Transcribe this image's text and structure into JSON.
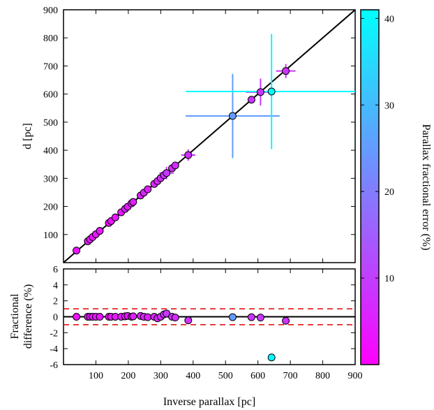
{
  "chart_data": [
    {
      "type": "scatter",
      "panel": "top",
      "ylabel": "d [pc]",
      "xlim": [
        0,
        900
      ],
      "ylim": [
        0,
        900
      ],
      "xticks": [
        100,
        200,
        300,
        400,
        500,
        600,
        700,
        800,
        900
      ],
      "yticks": [
        100,
        200,
        300,
        400,
        500,
        600,
        700,
        800,
        900
      ],
      "reference_line": "y = x",
      "points": [
        {
          "x": 40,
          "y": 43,
          "err": 3
        },
        {
          "x": 75,
          "y": 76,
          "err": 4
        },
        {
          "x": 82,
          "y": 83,
          "err": 4
        },
        {
          "x": 90,
          "y": 91,
          "err": 3
        },
        {
          "x": 100,
          "y": 101,
          "err": 4
        },
        {
          "x": 112,
          "y": 113,
          "err": 4
        },
        {
          "x": 140,
          "y": 141,
          "err": 3
        },
        {
          "x": 147,
          "y": 148,
          "err": 3
        },
        {
          "x": 160,
          "y": 161,
          "err": 4
        },
        {
          "x": 178,
          "y": 179,
          "err": 4
        },
        {
          "x": 190,
          "y": 191,
          "err": 5
        },
        {
          "x": 198,
          "y": 199,
          "err": 4
        },
        {
          "x": 210,
          "y": 211,
          "err": 5
        },
        {
          "x": 215,
          "y": 216,
          "err": 5
        },
        {
          "x": 238,
          "y": 239,
          "err": 5
        },
        {
          "x": 248,
          "y": 249,
          "err": 6
        },
        {
          "x": 260,
          "y": 261,
          "err": 5
        },
        {
          "x": 280,
          "y": 280,
          "err": 6
        },
        {
          "x": 290,
          "y": 290,
          "err": 6
        },
        {
          "x": 300,
          "y": 301,
          "err": 7
        },
        {
          "x": 310,
          "y": 311,
          "err": 8
        },
        {
          "x": 318,
          "y": 319,
          "err": 9
        },
        {
          "x": 335,
          "y": 336,
          "err": 7
        },
        {
          "x": 345,
          "y": 346,
          "err": 7
        },
        {
          "x": 385,
          "y": 383,
          "err": 8
        },
        {
          "x": 522,
          "y": 522,
          "err": 25
        },
        {
          "x": 580,
          "y": 580,
          "err": 8
        },
        {
          "x": 608,
          "y": 607,
          "err": 9
        },
        {
          "x": 642,
          "y": 609,
          "err": 40
        },
        {
          "x": 686,
          "y": 682,
          "err": 8
        }
      ],
      "error_bars": [
        {
          "x": 385,
          "y": 383,
          "xerr": 22,
          "yerr": 20,
          "err": 8
        },
        {
          "x": 318,
          "y": 319,
          "xerr": 22,
          "yerr": 22,
          "err": 9
        },
        {
          "x": 522,
          "y": 522,
          "xerr": 145,
          "yerr": 150,
          "err": 25
        },
        {
          "x": 608,
          "y": 607,
          "xerr": 45,
          "yerr": 48,
          "err": 9
        },
        {
          "x": 642,
          "y": 609,
          "xerr": 265,
          "yerr": 205,
          "err": 40
        },
        {
          "x": 686,
          "y": 682,
          "xerr": 30,
          "yerr": 25,
          "err": 8
        }
      ]
    },
    {
      "type": "scatter",
      "panel": "bottom",
      "xlabel": "Inverse parallax [pc]",
      "ylabel_line1": "Fractional",
      "ylabel_line2": "difference (%)",
      "xlim": [
        0,
        900
      ],
      "ylim": [
        -6,
        6
      ],
      "xticks": [
        100,
        200,
        300,
        400,
        500,
        600,
        700,
        800,
        900
      ],
      "yticks": [
        -6,
        -4,
        -2,
        0,
        2,
        4,
        6
      ],
      "reference_lines": [
        0,
        1,
        -1
      ],
      "points": [
        {
          "x": 40,
          "y": 0.0,
          "err": 3
        },
        {
          "x": 75,
          "y": 0.0,
          "err": 4
        },
        {
          "x": 82,
          "y": 0.0,
          "err": 4
        },
        {
          "x": 90,
          "y": 0.0,
          "err": 3
        },
        {
          "x": 100,
          "y": 0.0,
          "err": 4
        },
        {
          "x": 112,
          "y": 0.0,
          "err": 4
        },
        {
          "x": 140,
          "y": 0.0,
          "err": 3
        },
        {
          "x": 147,
          "y": 0.0,
          "err": 3
        },
        {
          "x": 160,
          "y": 0.0,
          "err": 4
        },
        {
          "x": 178,
          "y": 0.0,
          "err": 4
        },
        {
          "x": 190,
          "y": 0.05,
          "err": 5
        },
        {
          "x": 198,
          "y": 0.1,
          "err": 4
        },
        {
          "x": 210,
          "y": 0.0,
          "err": 5
        },
        {
          "x": 215,
          "y": 0.05,
          "err": 5
        },
        {
          "x": 238,
          "y": 0.1,
          "err": 5
        },
        {
          "x": 248,
          "y": 0.0,
          "err": 6
        },
        {
          "x": 260,
          "y": -0.05,
          "err": 5
        },
        {
          "x": 280,
          "y": 0.0,
          "err": 6
        },
        {
          "x": 290,
          "y": -0.2,
          "err": 6
        },
        {
          "x": 300,
          "y": 0.0,
          "err": 7
        },
        {
          "x": 310,
          "y": 0.3,
          "err": 8
        },
        {
          "x": 318,
          "y": 0.4,
          "err": 9
        },
        {
          "x": 335,
          "y": 0.0,
          "err": 7
        },
        {
          "x": 345,
          "y": -0.1,
          "err": 7
        },
        {
          "x": 385,
          "y": -0.45,
          "err": 8
        },
        {
          "x": 522,
          "y": -0.05,
          "err": 25
        },
        {
          "x": 580,
          "y": -0.05,
          "err": 8
        },
        {
          "x": 608,
          "y": -0.1,
          "err": 9
        },
        {
          "x": 642,
          "y": -5.1,
          "err": 40
        },
        {
          "x": 686,
          "y": -0.5,
          "err": 8
        }
      ]
    }
  ],
  "colorbar": {
    "label": "Parallax fractional error (%)",
    "range": [
      0,
      41
    ],
    "ticks": [
      10,
      20,
      30,
      40
    ],
    "color_low": "#ff00ff",
    "color_high": "#00ffff"
  }
}
